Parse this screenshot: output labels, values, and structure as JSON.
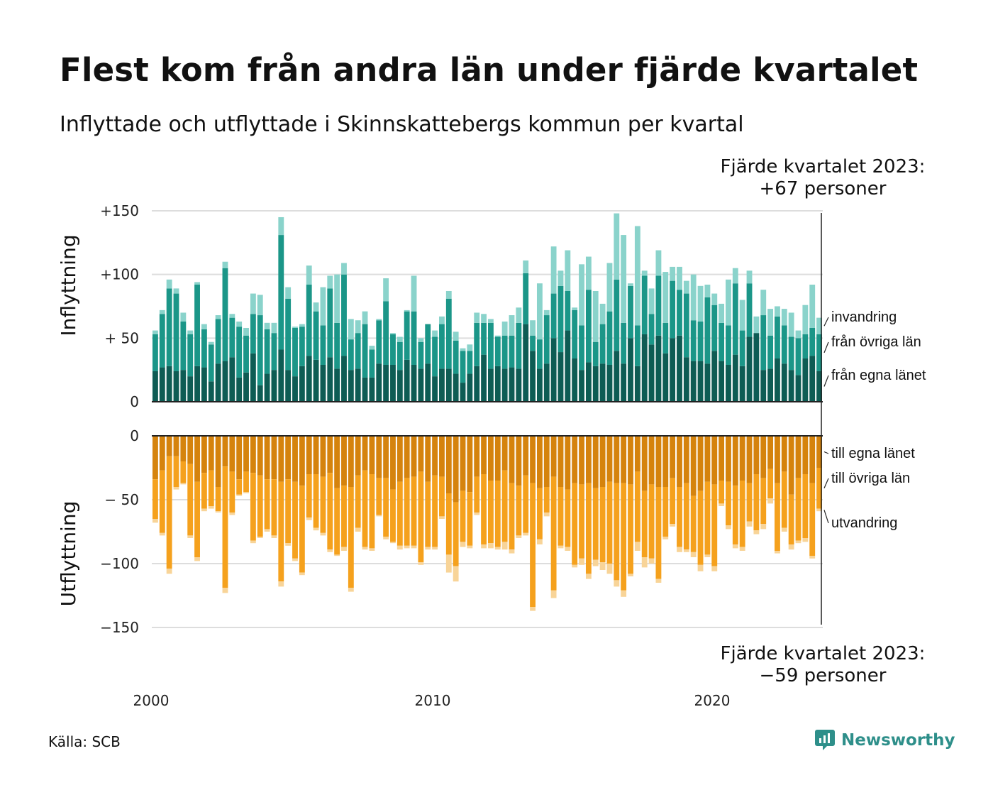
{
  "title": "Flest kom från andra län under fjärde kvartalet",
  "subtitle": "Inflyttade och utflyttade i Skinnskattebergs kommun per kvartal",
  "callout_top": {
    "line1": "Fjärde kvartalet 2023:",
    "line2": "+67 personer"
  },
  "callout_bottom": {
    "line1": "Fjärde kvartalet 2023:",
    "line2": "−59 personer"
  },
  "source": "Källa: SCB",
  "logo": {
    "text": "Newsworthy",
    "icon": "newsworthy-logo-icon"
  },
  "colors": {
    "in_own": "#0e5c54",
    "in_other": "#1b9688",
    "in_immigration": "#8ad3cb",
    "out_own": "#d5830d",
    "out_other": "#f5a11d",
    "out_emigration": "#f8d498",
    "grid": "#dddddd",
    "axis": "#222222"
  },
  "chart_data": {
    "type": "bar",
    "stacked": true,
    "x_tick_labels": [
      "2000",
      "2010",
      "2020"
    ],
    "quarters_start": "2000 Q1",
    "quarters_end": "2023 Q4",
    "inflow": {
      "axis_title": "Inflyttning",
      "ylim": [
        0,
        150
      ],
      "tick_values": [
        0,
        50,
        100,
        150
      ],
      "tick_labels": [
        "0",
        "+ 50",
        "+100",
        "+150"
      ],
      "series": [
        {
          "name": "från egna länet",
          "values": [
            24,
            27,
            28,
            24,
            25,
            20,
            28,
            27,
            16,
            30,
            32,
            35,
            19,
            23,
            38,
            13,
            22,
            25,
            41,
            25,
            20,
            28,
            36,
            33,
            29,
            35,
            26,
            36,
            25,
            26,
            19,
            19,
            30,
            29,
            29,
            25,
            33,
            29,
            26,
            30,
            20,
            26,
            26,
            22,
            15,
            22,
            28,
            37,
            26,
            28,
            26,
            27,
            26,
            61,
            40,
            26,
            30,
            50,
            39,
            56,
            34,
            25,
            31,
            28,
            30,
            29,
            40,
            30,
            50,
            28,
            53,
            45,
            52,
            38,
            50,
            52,
            35,
            32,
            32,
            30,
            40,
            32,
            29,
            37,
            28,
            51,
            54,
            25,
            26,
            34,
            30,
            25,
            21,
            34,
            36,
            24
          ]
        },
        {
          "name": "från övriga län",
          "values": [
            29,
            42,
            61,
            61,
            38,
            33,
            64,
            30,
            29,
            35,
            73,
            31,
            40,
            29,
            31,
            55,
            35,
            29,
            90,
            56,
            38,
            31,
            56,
            38,
            31,
            54,
            36,
            64,
            24,
            28,
            42,
            22,
            34,
            50,
            24,
            22,
            38,
            42,
            21,
            31,
            31,
            35,
            55,
            26,
            25,
            18,
            34,
            25,
            36,
            23,
            26,
            25,
            36,
            40,
            12,
            23,
            38,
            35,
            52,
            31,
            38,
            35,
            57,
            19,
            31,
            42,
            56,
            32,
            41,
            32,
            46,
            24,
            47,
            24,
            45,
            36,
            50,
            32,
            31,
            52,
            36,
            30,
            31,
            56,
            28,
            42,
            0,
            43,
            26,
            33,
            30,
            26,
            29,
            19,
            22,
            29
          ]
        },
        {
          "name": "invandring",
          "values": [
            3,
            3,
            7,
            4,
            7,
            3,
            2,
            4,
            2,
            3,
            5,
            3,
            4,
            6,
            16,
            16,
            5,
            8,
            14,
            9,
            1,
            2,
            15,
            7,
            30,
            10,
            38,
            9,
            16,
            10,
            10,
            3,
            1,
            18,
            1,
            4,
            1,
            28,
            3,
            0,
            5,
            6,
            6,
            7,
            2,
            5,
            8,
            7,
            3,
            1,
            11,
            16,
            12,
            10,
            12,
            44,
            4,
            37,
            12,
            32,
            2,
            48,
            26,
            40,
            16,
            38,
            52,
            69,
            2,
            78,
            4,
            20,
            20,
            40,
            11,
            18,
            10,
            36,
            28,
            10,
            9,
            15,
            36,
            12,
            24,
            10,
            13,
            20,
            21,
            8,
            13,
            19,
            6,
            23,
            34,
            13
          ]
        }
      ]
    },
    "outflow": {
      "axis_title": "Utflyttning",
      "ylim": [
        -150,
        0
      ],
      "tick_values": [
        0,
        -50,
        -100,
        -150
      ],
      "tick_labels": [
        "0",
        "− 50",
        "−100",
        "−150"
      ],
      "series": [
        {
          "name": "till egna länet",
          "values": [
            -34,
            -27,
            -16,
            -16,
            -20,
            -22,
            -36,
            -29,
            -27,
            -40,
            -24,
            -28,
            -34,
            -28,
            -29,
            -31,
            -34,
            -34,
            -36,
            -34,
            -36,
            -39,
            -30,
            -30,
            -32,
            -29,
            -41,
            -39,
            -40,
            -31,
            -27,
            -30,
            -33,
            -33,
            -42,
            -36,
            -33,
            -32,
            -28,
            -36,
            -31,
            -32,
            -45,
            -52,
            -43,
            -44,
            -32,
            -30,
            -35,
            -35,
            -27,
            -37,
            -39,
            -31,
            -37,
            -41,
            -40,
            -32,
            -40,
            -42,
            -37,
            -38,
            -37,
            -41,
            -40,
            -36,
            -37,
            -37,
            -38,
            -28,
            -43,
            -38,
            -40,
            -40,
            -33,
            -40,
            -37,
            -47,
            -43,
            -36,
            -38,
            -35,
            -36,
            -39,
            -35,
            -37,
            -30,
            -33,
            -26,
            -37,
            -28,
            -46,
            -33,
            -30,
            -37,
            -25
          ]
        },
        {
          "name": "till övriga län",
          "values": [
            -31,
            -49,
            -88,
            -24,
            -17,
            -56,
            -59,
            -28,
            -28,
            -19,
            -95,
            -32,
            -12,
            -16,
            -53,
            -48,
            -39,
            -44,
            -78,
            -50,
            -60,
            -68,
            -34,
            -42,
            -44,
            -60,
            -52,
            -48,
            -79,
            -41,
            -60,
            -58,
            -29,
            -46,
            -41,
            -50,
            -53,
            -54,
            -71,
            -51,
            -56,
            -31,
            -48,
            -50,
            -40,
            -42,
            -28,
            -55,
            -49,
            -52,
            -56,
            -52,
            -39,
            -45,
            -97,
            -40,
            -20,
            -89,
            -46,
            -45,
            -64,
            -58,
            -71,
            -56,
            -59,
            -64,
            -76,
            -84,
            -70,
            -55,
            -52,
            -58,
            -72,
            -39,
            -36,
            -47,
            -52,
            -44,
            -58,
            -57,
            -64,
            -18,
            -34,
            -46,
            -52,
            -30,
            -44,
            -36,
            -23,
            -53,
            -44,
            -39,
            -49,
            -50,
            -57,
            -32
          ]
        },
        {
          "name": "utvandring",
          "values": [
            -3,
            -2,
            -4,
            -2,
            -1,
            -2,
            -3,
            -2,
            -2,
            -1,
            -4,
            -2,
            -1,
            -1,
            -2,
            -1,
            -2,
            -2,
            -4,
            -2,
            -2,
            -2,
            -2,
            -2,
            -2,
            -2,
            -1,
            -3,
            -3,
            -3,
            -2,
            -2,
            -1,
            -2,
            -1,
            -3,
            -2,
            -2,
            -2,
            -2,
            -2,
            -2,
            -14,
            -12,
            -4,
            -2,
            -2,
            -3,
            -4,
            -2,
            -6,
            -3,
            -2,
            -2,
            -3,
            -4,
            -3,
            -6,
            -2,
            -3,
            -2,
            -5,
            -4,
            -5,
            -6,
            -8,
            -5,
            -5,
            -2,
            -7,
            -8,
            -4,
            -3,
            -2,
            -2,
            -4,
            -2,
            -4,
            -5,
            -2,
            -4,
            -2,
            -3,
            -3,
            -3,
            -4,
            -3,
            -4,
            -4,
            -2,
            -3,
            -4,
            -2,
            -3,
            -2,
            -2
          ]
        }
      ]
    }
  }
}
